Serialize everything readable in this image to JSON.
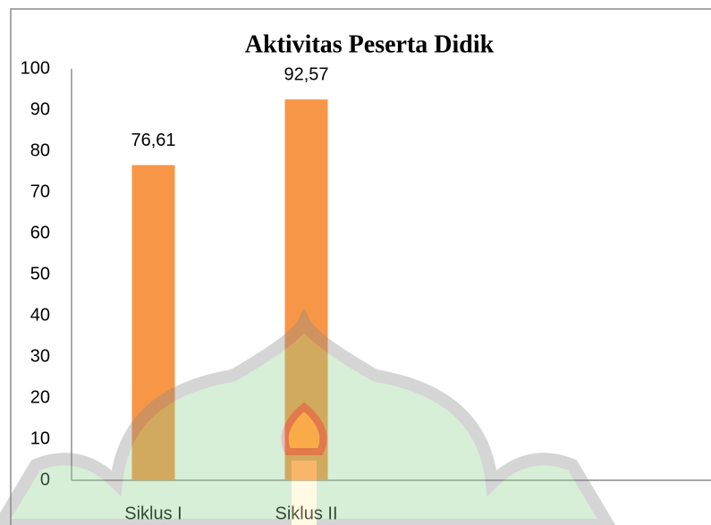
{
  "chart_data": {
    "type": "bar",
    "title": "Aktivitas Peserta Didik",
    "categories": [
      "Siklus I",
      "Siklus II"
    ],
    "values": [
      76.61,
      92.57
    ],
    "value_labels": [
      "76,61",
      "92,57"
    ],
    "color": "#f79646",
    "ylim": [
      0,
      100
    ],
    "yticks": [
      0,
      10,
      20,
      30,
      40,
      50,
      60,
      70,
      80,
      90,
      100
    ],
    "grid": false
  }
}
